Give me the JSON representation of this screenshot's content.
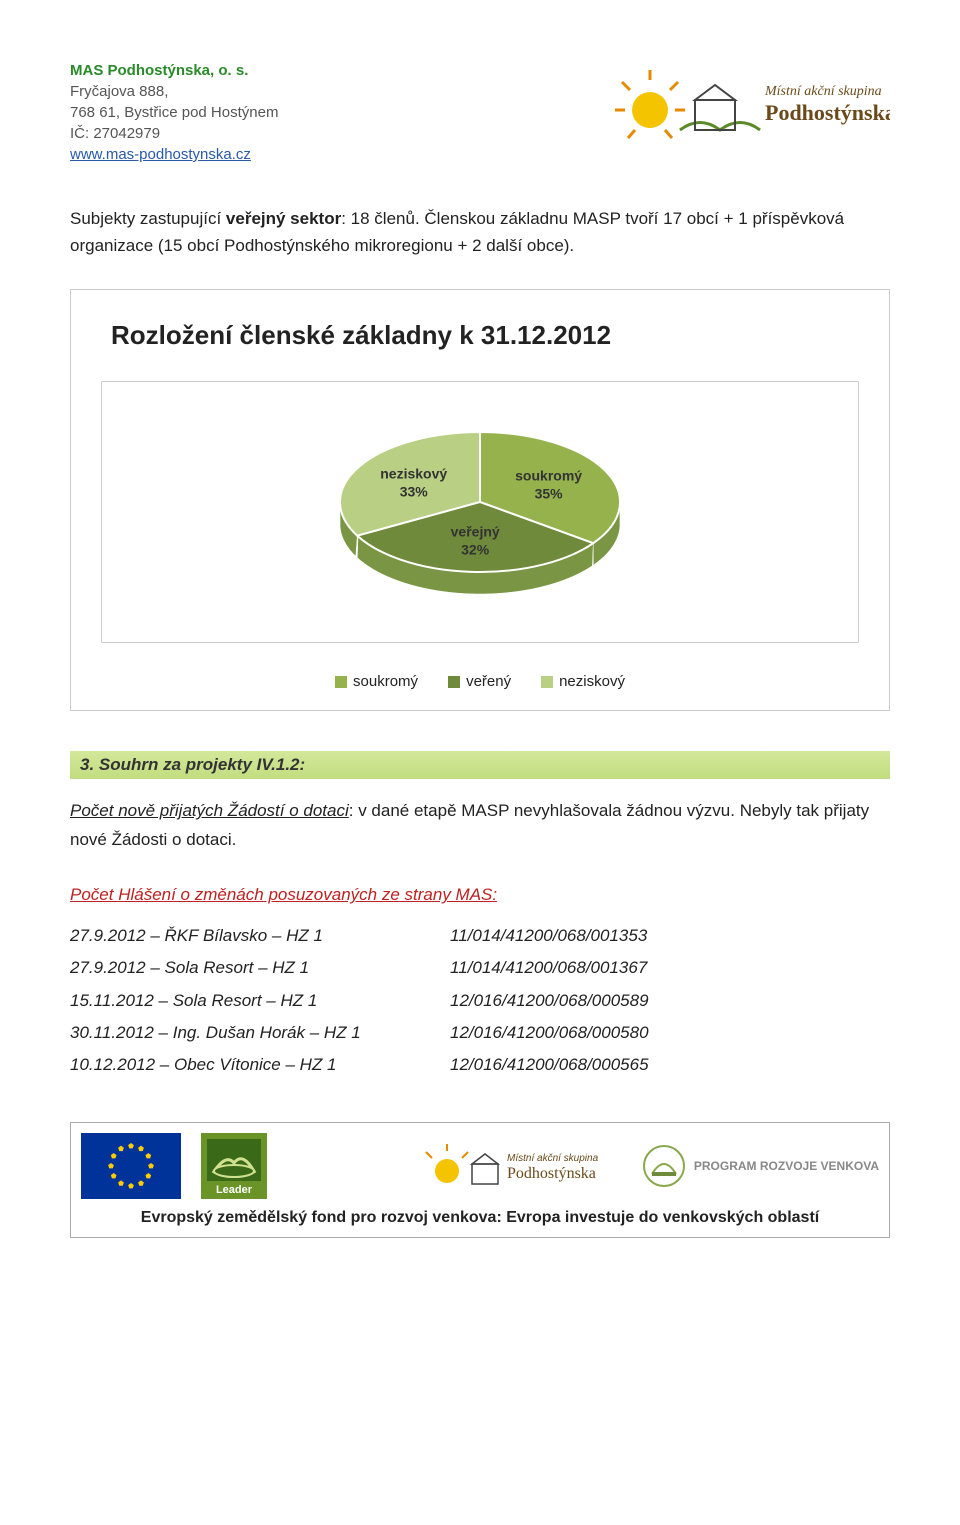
{
  "header": {
    "org_name": "MAS Podhostýnska, o. s.",
    "addr1": "Fryčajova 888,",
    "addr2": "768 61, Bystřice pod Hostýnem",
    "ico": "IČ: 27042979",
    "website": "www.mas-podhostynska.cz",
    "logo_text1": "Místní akční skupina",
    "logo_text2": "Podhostýnska"
  },
  "intro": {
    "prefix": "Subjekty zastupující ",
    "bold": "veřejný sektor",
    "rest": ": 18 členů. Členskou základnu MASP tvoří 17 obcí + 1 příspěvková organizace (15 obcí Podhostýnského mikroregionu + 2 další obce)."
  },
  "chart": {
    "title": "Rozložení členské základny k 31.12.2012",
    "type": "pie",
    "slices": [
      {
        "label": "neziskový",
        "pct": "33%",
        "value": 33,
        "color": "#b9cf83"
      },
      {
        "label": "soukromý",
        "pct": "35%",
        "value": 35,
        "color": "#95b24d"
      },
      {
        "label": "veřejný",
        "pct": "32%",
        "value": 32,
        "color": "#6e8a3a"
      }
    ],
    "legend": [
      {
        "label": "soukromý",
        "color": "#95b24d"
      },
      {
        "label": "veřený",
        "color": "#6e8a3a"
      },
      {
        "label": "neziskový",
        "color": "#b9cf83"
      }
    ],
    "label_fontsize": 14,
    "label_weight": "bold",
    "background_color": "#ffffff",
    "side_color": "#7a9544"
  },
  "section": {
    "heading": "3. Souhrn za projekty IV.1.2:",
    "line1_ul": "Počet nově přijatých Žádostí o dotaci",
    "line1_rest": ": v dané etapě MASP nevyhlašovala žádnou výzvu. Nebyly tak přijaty nové Žádosti o dotaci.",
    "reports_head": "Počet Hlášení o změnách posuzovaných ze strany MAS",
    "reports_head_suffix": ":",
    "reports": [
      {
        "left": "27.9.2012 – ŘKF Bílavsko – HZ 1",
        "right": "11/014/41200/068/001353"
      },
      {
        "left": "27.9.2012 – Sola Resort – HZ 1",
        "right": "11/014/41200/068/001367"
      },
      {
        "left": "15.11.2012 – Sola Resort – HZ 1",
        "right": "12/016/41200/068/000589"
      },
      {
        "left": "30.11.2012 – Ing. Dušan Horák – HZ 1",
        "right": "12/016/41200/068/000580"
      },
      {
        "left": "10.12.2012 – Obec Vítonice – HZ 1",
        "right": "12/016/41200/068/000565"
      }
    ]
  },
  "footer": {
    "leader": "Leader",
    "program": "PROGRAM ROZVOJE VENKOVA",
    "tagline": "Evropský zemědělský fond pro rozvoj venkova: Evropa investuje do venkovských oblastí",
    "logo_text1": "Místní akční skupina",
    "logo_text2": "Podhostýnska"
  },
  "colors": {
    "green": "#2a8a2a",
    "gray_text": "#555555",
    "link_blue": "#2a5aa8",
    "heading_bg": "#c2dd80",
    "red": "#c02020",
    "eu_blue": "#003399",
    "eu_gold": "#ffcc00"
  }
}
